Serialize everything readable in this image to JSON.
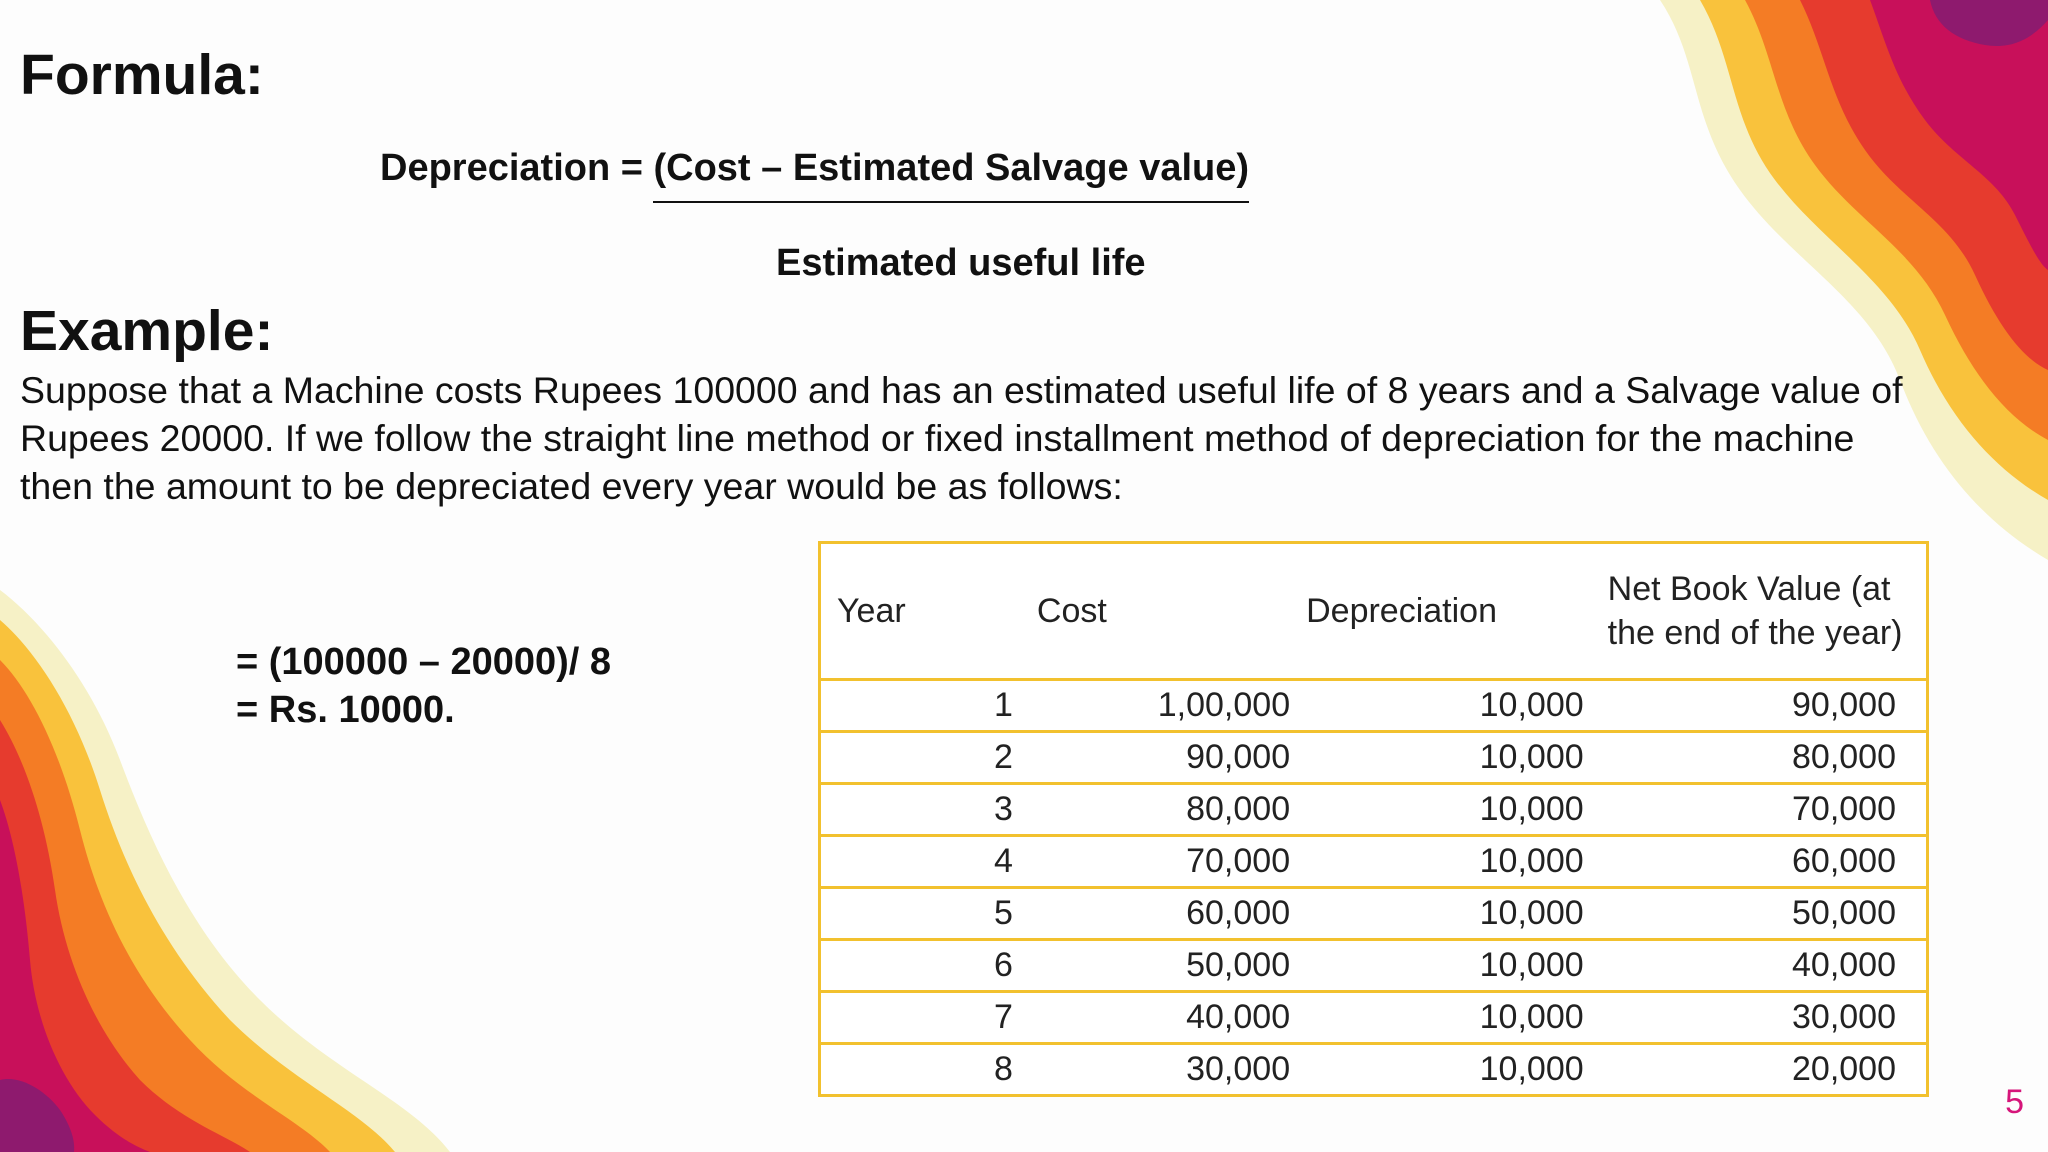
{
  "slide": {
    "formula_heading": "Formula:",
    "formula_lhs": "Depreciation = ",
    "formula_numerator": "(Cost – Estimated Salvage value)",
    "formula_denominator": "Estimated useful life",
    "example_heading": "Example:",
    "example_text": "Suppose that a Machine costs Rupees 100000 and has an estimated useful life of 8 years and a Salvage value of Rupees 20000. If we follow the straight line method or fixed installment method of depreciation for the machine then the amount to be depreciated every year would be as follows:",
    "calc_line1": "= (100000 – 20000)/ 8",
    "calc_line2": "= Rs. 10000.",
    "page_number": "5"
  },
  "table": {
    "headers": [
      "Year",
      "Cost",
      "Depreciation",
      "Net Book Value (at the end of the year)"
    ],
    "rows": [
      [
        "1",
        "1,00,000",
        "10,000",
        "90,000"
      ],
      [
        "2",
        "90,000",
        "10,000",
        "80,000"
      ],
      [
        "3",
        "80,000",
        "10,000",
        "70,000"
      ],
      [
        "4",
        "70,000",
        "10,000",
        "60,000"
      ],
      [
        "5",
        "60,000",
        "10,000",
        "50,000"
      ],
      [
        "6",
        "50,000",
        "10,000",
        "40,000"
      ],
      [
        "7",
        "40,000",
        "10,000",
        "30,000"
      ],
      [
        "8",
        "30,000",
        "10,000",
        "20,000"
      ]
    ]
  },
  "colors": {
    "table_border": "#f2c12e",
    "page_number": "#d6157a",
    "wave_cream": "#f6f1c6",
    "wave_yellow": "#f9c23c",
    "wave_orange": "#f47c25",
    "wave_red": "#e63b2e",
    "wave_magenta": "#c8105a",
    "wave_purple": "#8e1a6e"
  }
}
